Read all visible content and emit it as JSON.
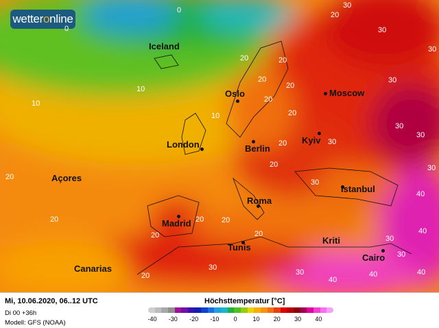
{
  "logo": {
    "text_a": "wetter",
    "text_b": "o",
    "text_c": "nline"
  },
  "cities": [
    "Iceland",
    "Oslo",
    "Moscow",
    "London",
    "Berlin",
    "Kyiv",
    "Açores",
    "Roma",
    "Istanbul",
    "Madrid",
    "Tunis",
    "Kriti",
    "Canarias",
    "Cairo"
  ],
  "isotherm_labels": [
    "0",
    "20",
    "30",
    "30",
    "30",
    "0",
    "10",
    "10",
    "20",
    "20",
    "20",
    "20",
    "20",
    "10",
    "20",
    "30",
    "30",
    "30",
    "30",
    "30",
    "20",
    "20",
    "30",
    "20",
    "20",
    "20",
    "20",
    "20",
    "20",
    "30",
    "40",
    "40",
    "30",
    "40",
    "40",
    "40",
    "30",
    "30",
    "20"
  ],
  "footer": {
    "date": "Mi, 10.06.2020, 06..12 UTC",
    "run": "Di 00 +36h",
    "model": "Modell: GFS (NOAA)"
  },
  "legend": {
    "title": "Höchsttemperatur [°C]",
    "ticks": [
      "-40",
      "-30",
      "-20",
      "-10",
      "0",
      "10",
      "20",
      "30",
      "40"
    ],
    "colors": [
      "#cfcfcf",
      "#bdbdbd",
      "#a8a8a8",
      "#8f8f8f",
      "#a0109a",
      "#7010a8",
      "#3a10b0",
      "#1020b0",
      "#1040d0",
      "#1870e0",
      "#20a0e0",
      "#18b8c8",
      "#20b040",
      "#50c020",
      "#90d010",
      "#f0d000",
      "#f8b000",
      "#f89010",
      "#f07010",
      "#e84010",
      "#e00000",
      "#b80000",
      "#900010",
      "#a00050",
      "#e000a0",
      "#f040d0",
      "#f870f0",
      "#f8a0f8"
    ]
  },
  "map_colors": {
    "sea_west": "#f48a10",
    "north_atlantic": "#f0c000",
    "arctic": "#30b830",
    "greenland": "#30a0d0",
    "europe_hot": "#e02010",
    "east_hot": "#c00020",
    "desert": "#e020b0"
  }
}
